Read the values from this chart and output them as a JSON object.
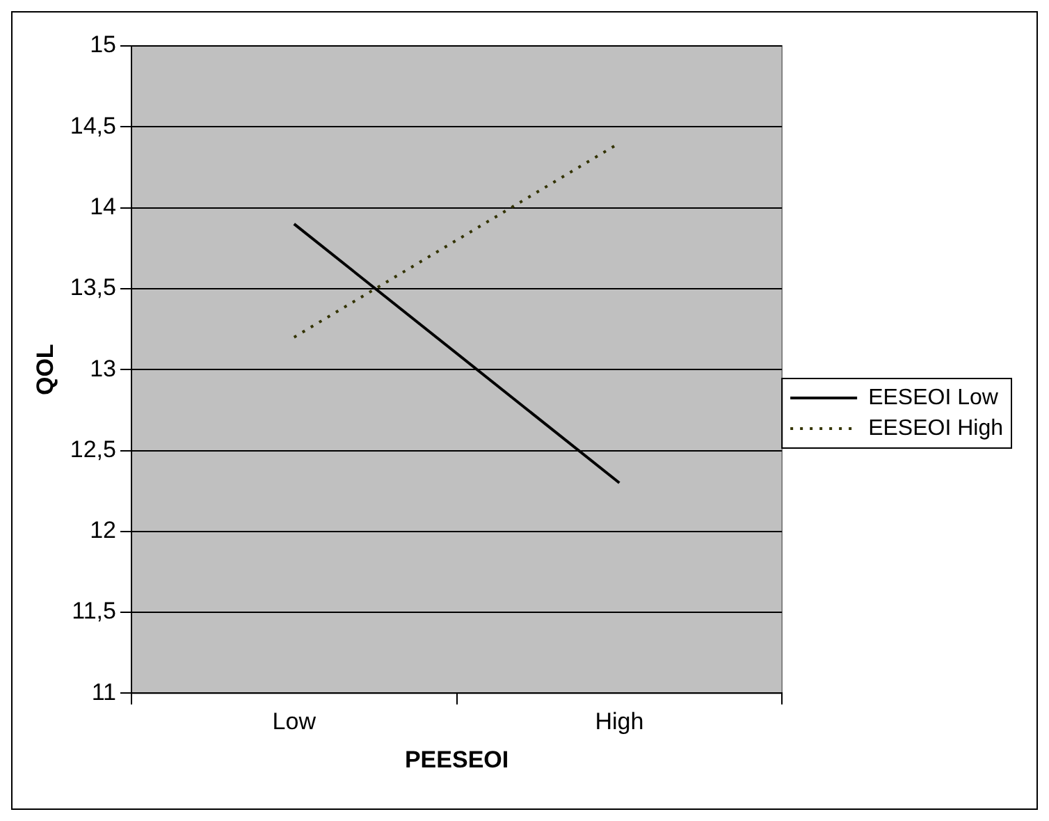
{
  "chart_data": {
    "type": "line",
    "xlabel": "PEESEOI",
    "ylabel": "QOL",
    "categories": [
      "Low",
      "High"
    ],
    "series": [
      {
        "name": "EESEOI Low",
        "color": "#000000",
        "values": [
          13.9,
          12.3
        ],
        "line_style": "solid"
      },
      {
        "name": "EESEOI High",
        "color": "#333300",
        "values": [
          13.2,
          14.4
        ],
        "line_style": "dotted"
      }
    ],
    "ylim": [
      11,
      15
    ],
    "yticks": [
      11,
      {
        "value": 11.5,
        "label": "11,5"
      },
      12,
      {
        "value": 12.5,
        "label": "12,5"
      },
      13,
      {
        "value": 13.5,
        "label": "13,5"
      },
      14,
      {
        "value": 14.5,
        "label": "14,5"
      },
      15
    ],
    "grid": "y",
    "legend": "right",
    "marker": "none"
  }
}
